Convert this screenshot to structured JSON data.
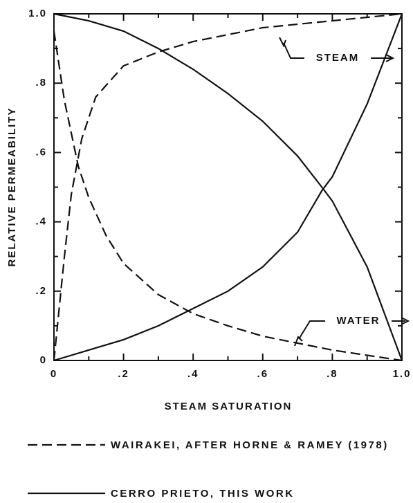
{
  "chart_data": {
    "type": "line",
    "xlabel": "STEAM SATURATION",
    "ylabel": "RELATIVE PERMEABILITY",
    "xlim": [
      0,
      1
    ],
    "ylim": [
      0,
      1
    ],
    "xticks": [
      0,
      {
        "value": 0.2,
        "label": ".2"
      },
      {
        "value": 0.4,
        "label": ".4"
      },
      {
        "value": 0.6,
        "label": ".6"
      },
      {
        "value": 0.8,
        "label": ".8"
      },
      {
        "value": 1,
        "label": "1.0"
      }
    ],
    "yticks": [
      0,
      {
        "value": 0.2,
        "label": ".2"
      },
      {
        "value": 0.4,
        "label": ".4"
      },
      {
        "value": 0.6,
        "label": ".6"
      },
      {
        "value": 0.8,
        "label": ".8"
      },
      {
        "value": 1,
        "label": "1.0"
      }
    ],
    "minor_ticks": [
      0.1,
      0.3,
      0.5,
      0.7,
      0.9
    ],
    "grid": false,
    "color": "#111111",
    "annotations": [
      "STEAM",
      "WATER"
    ],
    "series": [
      {
        "name": "WAIRAKEI, AFTER HORNE & RAMEY (1978)",
        "dash": "dashed",
        "curves": [
          {
            "x": [
              0,
              0.01,
              0.03,
              0.05,
              0.08,
              0.12,
              0.2,
              0.3,
              0.4,
              0.5,
              0.6,
              0.7,
              0.8,
              0.9,
              1.0
            ],
            "values": [
              0,
              0.1,
              0.3,
              0.48,
              0.64,
              0.76,
              0.85,
              0.89,
              0.92,
              0.94,
              0.96,
              0.97,
              0.98,
              0.99,
              1.0
            ]
          },
          {
            "x": [
              0,
              0.03,
              0.07,
              0.1,
              0.15,
              0.2,
              0.3,
              0.4,
              0.5,
              0.6,
              0.7,
              0.8,
              0.9,
              1.0
            ],
            "values": [
              0.95,
              0.75,
              0.56,
              0.47,
              0.36,
              0.28,
              0.19,
              0.135,
              0.1,
              0.07,
              0.05,
              0.03,
              0.015,
              0
            ]
          }
        ]
      },
      {
        "name": "CERRO PRIETO, THIS WORK",
        "dash": "solid",
        "curves": [
          {
            "x": [
              0,
              0.1,
              0.2,
              0.3,
              0.4,
              0.5,
              0.6,
              0.7,
              0.77,
              0.8,
              0.9,
              1.0
            ],
            "values": [
              0,
              0.03,
              0.06,
              0.1,
              0.15,
              0.2,
              0.27,
              0.37,
              0.49,
              0.53,
              0.74,
              1.0
            ]
          },
          {
            "x": [
              0,
              0.1,
              0.2,
              0.3,
              0.4,
              0.5,
              0.6,
              0.7,
              0.77,
              0.8,
              0.9,
              1.0
            ],
            "values": [
              1.0,
              0.98,
              0.95,
              0.9,
              0.84,
              0.77,
              0.69,
              0.59,
              0.5,
              0.46,
              0.27,
              0
            ]
          }
        ]
      }
    ]
  }
}
